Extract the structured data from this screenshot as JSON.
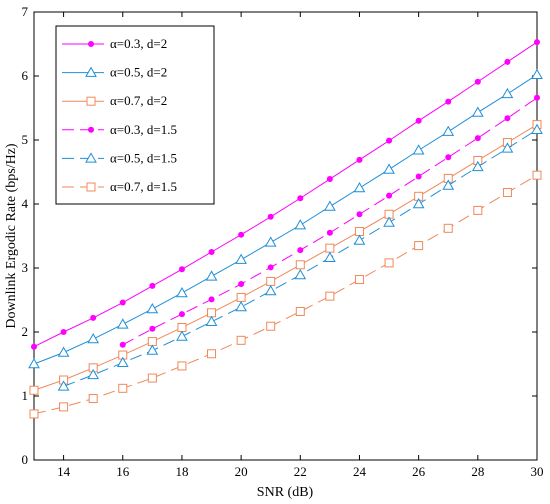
{
  "chart_data": {
    "type": "line",
    "title": "",
    "xlabel": "SNR (dB)",
    "ylabel": "Downlink Ergodic Rate (bps/Hz)",
    "xlim": [
      13,
      30
    ],
    "ylim": [
      0,
      7
    ],
    "xticks": [
      14,
      16,
      18,
      20,
      22,
      24,
      26,
      28,
      30
    ],
    "yticks": [
      0,
      1,
      2,
      3,
      4,
      5,
      6,
      7
    ],
    "grid": false,
    "legend_position": "top-left",
    "series": [
      {
        "name": "α=0.3, d=2",
        "color": "#ff00ff",
        "marker": "dot",
        "dash": "solid",
        "x": [
          13,
          14,
          15,
          16,
          17,
          18,
          19,
          20,
          21,
          22,
          23,
          24,
          25,
          26,
          27,
          28,
          29,
          30
        ],
        "y": [
          1.77,
          2.0,
          2.22,
          2.46,
          2.72,
          2.98,
          3.25,
          3.52,
          3.8,
          4.09,
          4.39,
          4.69,
          4.99,
          5.3,
          5.6,
          5.91,
          6.22,
          6.53
        ]
      },
      {
        "name": "α=0.5, d=2",
        "color": "#1f8fd8",
        "marker": "triangle",
        "dash": "solid",
        "x": [
          13,
          14,
          15,
          16,
          17,
          18,
          19,
          20,
          21,
          22,
          23,
          24,
          25,
          26,
          27,
          28,
          29,
          30
        ],
        "y": [
          1.5,
          1.68,
          1.89,
          2.12,
          2.36,
          2.61,
          2.87,
          3.13,
          3.4,
          3.67,
          3.96,
          4.25,
          4.54,
          4.84,
          5.13,
          5.43,
          5.72,
          6.02
        ]
      },
      {
        "name": "α=0.7, d=2",
        "color": "#f0885a",
        "marker": "square",
        "dash": "solid",
        "x": [
          13,
          14,
          15,
          16,
          17,
          18,
          19,
          20,
          21,
          22,
          23,
          24,
          25,
          26,
          27,
          28,
          29,
          30
        ],
        "y": [
          1.09,
          1.25,
          1.44,
          1.64,
          1.85,
          2.07,
          2.3,
          2.54,
          2.79,
          3.05,
          3.31,
          3.57,
          3.84,
          4.12,
          4.4,
          4.68,
          4.96,
          5.24
        ]
      },
      {
        "name": "α=0.3, d=1.5",
        "color": "#ff00ff",
        "marker": "dot",
        "dash": "dashed",
        "x": [
          16,
          17,
          18,
          19,
          20,
          21,
          22,
          23,
          24,
          25,
          26,
          27,
          28,
          29,
          30
        ],
        "y": [
          1.8,
          2.05,
          2.28,
          2.51,
          2.75,
          3.01,
          3.28,
          3.55,
          3.84,
          4.13,
          4.43,
          4.73,
          5.03,
          5.34,
          5.66
        ]
      },
      {
        "name": "α=0.5, d=1.5",
        "color": "#1f8fd8",
        "marker": "triangle",
        "dash": "dashed",
        "x": [
          14,
          15,
          16,
          17,
          18,
          19,
          20,
          21,
          22,
          23,
          24,
          25,
          26,
          27,
          28,
          29,
          30
        ],
        "y": [
          1.15,
          1.33,
          1.52,
          1.71,
          1.93,
          2.16,
          2.39,
          2.64,
          2.89,
          3.16,
          3.43,
          3.71,
          4.0,
          4.29,
          4.58,
          4.87,
          5.16
        ]
      },
      {
        "name": "α=0.7, d=1.5",
        "color": "#f0885a",
        "marker": "square",
        "dash": "dashed",
        "x": [
          13,
          14,
          15,
          16,
          17,
          18,
          19,
          20,
          21,
          22,
          23,
          24,
          25,
          26,
          27,
          28,
          29,
          30
        ],
        "y": [
          0.72,
          0.83,
          0.96,
          1.12,
          1.28,
          1.47,
          1.66,
          1.87,
          2.09,
          2.32,
          2.56,
          2.82,
          3.08,
          3.35,
          3.62,
          3.9,
          4.18,
          4.45
        ]
      }
    ]
  }
}
